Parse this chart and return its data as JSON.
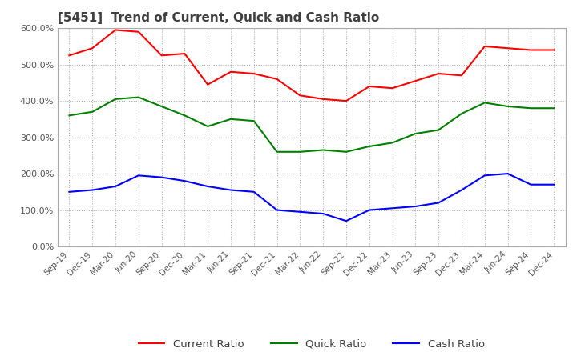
{
  "title": "[5451]  Trend of Current, Quick and Cash Ratio",
  "ylim": [
    0.0,
    6.0
  ],
  "yticks": [
    0.0,
    1.0,
    2.0,
    3.0,
    4.0,
    5.0,
    6.0
  ],
  "ytick_labels": [
    "0.0%",
    "100.0%",
    "200.0%",
    "300.0%",
    "400.0%",
    "500.0%",
    "600.0%"
  ],
  "x_labels": [
    "Sep-19",
    "Dec-19",
    "Mar-20",
    "Jun-20",
    "Sep-20",
    "Dec-20",
    "Mar-21",
    "Jun-21",
    "Sep-21",
    "Dec-21",
    "Mar-22",
    "Jun-22",
    "Sep-22",
    "Dec-22",
    "Mar-23",
    "Jun-23",
    "Sep-23",
    "Dec-23",
    "Mar-24",
    "Jun-24",
    "Sep-24",
    "Dec-24"
  ],
  "current_ratio": [
    5.25,
    5.45,
    5.95,
    5.9,
    5.25,
    5.3,
    4.45,
    4.8,
    4.75,
    4.6,
    4.15,
    4.05,
    4.0,
    4.4,
    4.35,
    4.55,
    4.75,
    4.7,
    5.5,
    5.45,
    5.4,
    5.4
  ],
  "quick_ratio": [
    3.6,
    3.7,
    4.05,
    4.1,
    3.85,
    3.6,
    3.3,
    3.5,
    3.45,
    2.6,
    2.6,
    2.65,
    2.6,
    2.75,
    2.85,
    3.1,
    3.2,
    3.65,
    3.95,
    3.85,
    3.8,
    3.8
  ],
  "cash_ratio": [
    1.5,
    1.55,
    1.65,
    1.95,
    1.9,
    1.8,
    1.65,
    1.55,
    1.5,
    1.0,
    0.95,
    0.9,
    0.7,
    1.0,
    1.05,
    1.1,
    1.2,
    1.55,
    1.95,
    2.0,
    1.7,
    1.7
  ],
  "current_color": "#ff0000",
  "quick_color": "#008000",
  "cash_color": "#0000ff",
  "bg_color": "#ffffff",
  "grid_color": "#aaaaaa",
  "title_color": "#404040",
  "legend_labels": [
    "Current Ratio",
    "Quick Ratio",
    "Cash Ratio"
  ]
}
